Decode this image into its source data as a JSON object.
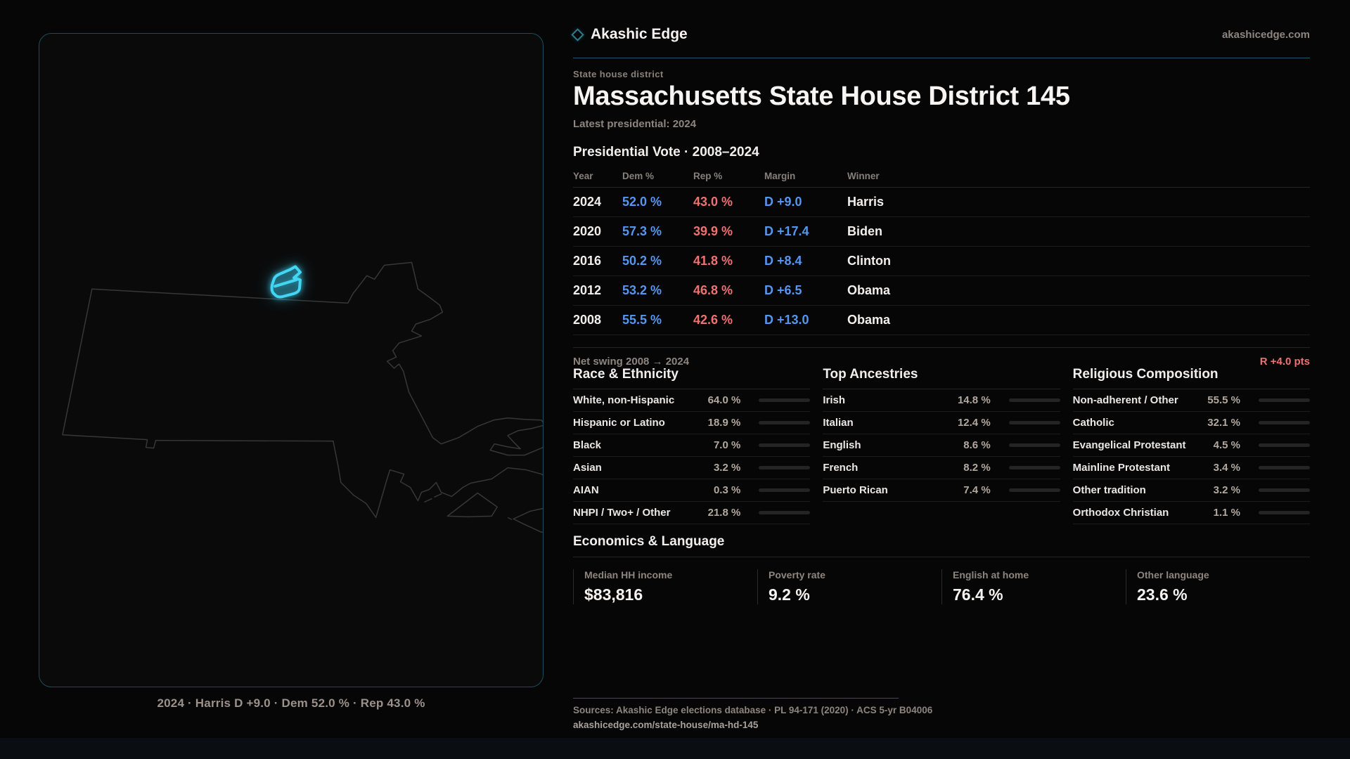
{
  "brand": {
    "name": "Akashic Edge",
    "domain": "akashicedge.com"
  },
  "page": {
    "kicker": "State house district",
    "title": "Massachusetts State House District 145",
    "latest": "Latest presidential: 2024"
  },
  "vote": {
    "heading": "Presidential Vote · 2008–2024",
    "columns": {
      "year": "Year",
      "dem": "Dem %",
      "rep": "Rep %",
      "margin": "Margin",
      "winner": "Winner"
    },
    "rows": [
      {
        "year": "2024",
        "dem": "52.0 %",
        "rep": "43.0 %",
        "margin": "D +9.0",
        "winner": "Harris"
      },
      {
        "year": "2020",
        "dem": "57.3 %",
        "rep": "39.9 %",
        "margin": "D +17.4",
        "winner": "Biden"
      },
      {
        "year": "2016",
        "dem": "50.2 %",
        "rep": "41.8 %",
        "margin": "D +8.4",
        "winner": "Clinton"
      },
      {
        "year": "2012",
        "dem": "53.2 %",
        "rep": "46.8 %",
        "margin": "D +6.5",
        "winner": "Obama"
      },
      {
        "year": "2008",
        "dem": "55.5 %",
        "rep": "42.6 %",
        "margin": "D +13.0",
        "winner": "Obama"
      }
    ]
  },
  "net_swing": {
    "label": "Net swing 2008 → 2024",
    "value": "R +4.0 pts"
  },
  "race": {
    "title": "Race & Ethnicity",
    "rows": [
      {
        "label": "White, non-Hispanic",
        "value": "64.0 %",
        "pct": 64.0
      },
      {
        "label": "Hispanic or Latino",
        "value": "18.9 %",
        "pct": 18.9
      },
      {
        "label": "Black",
        "value": "7.0 %",
        "pct": 7.0
      },
      {
        "label": "Asian",
        "value": "3.2 %",
        "pct": 3.2
      },
      {
        "label": "AIAN",
        "value": "0.3 %",
        "pct": 0.3
      },
      {
        "label": "NHPI / Two+ / Other",
        "value": "21.8 %",
        "pct": 21.8
      }
    ]
  },
  "ancestries": {
    "title": "Top Ancestries",
    "rows": [
      {
        "label": "Irish",
        "value": "14.8 %",
        "pct": 14.8
      },
      {
        "label": "Italian",
        "value": "12.4 %",
        "pct": 12.4
      },
      {
        "label": "English",
        "value": "8.6 %",
        "pct": 8.6
      },
      {
        "label": "French",
        "value": "8.2 %",
        "pct": 8.2
      },
      {
        "label": "Puerto Rican",
        "value": "7.4 %",
        "pct": 7.4
      }
    ]
  },
  "religion": {
    "title": "Religious Composition",
    "rows": [
      {
        "label": "Non-adherent / Other",
        "value": "55.5 %",
        "pct": 55.5
      },
      {
        "label": "Catholic",
        "value": "32.1 %",
        "pct": 32.1
      },
      {
        "label": "Evangelical Protestant",
        "value": "4.5 %",
        "pct": 4.5
      },
      {
        "label": "Mainline Protestant",
        "value": "3.4 %",
        "pct": 3.4
      },
      {
        "label": "Other tradition",
        "value": "3.2 %",
        "pct": 3.2
      },
      {
        "label": "Orthodox Christian",
        "value": "1.1 %",
        "pct": 1.1
      }
    ]
  },
  "economics": {
    "title": "Economics & Language",
    "stats": [
      {
        "label": "Median HH income",
        "value": "$83,816"
      },
      {
        "label": "Poverty rate",
        "value": "9.2 %"
      },
      {
        "label": "English at home",
        "value": "76.4 %"
      },
      {
        "label": "Other language",
        "value": "23.6 %"
      }
    ]
  },
  "footer": {
    "sources": "Sources: Akashic Edge elections database · PL 94-171 (2020) · ACS 5-yr B04006",
    "link": "akashicedge.com/state-house/ma-hd-145"
  },
  "map": {
    "caption": "2024 · Harris D +9.0 · Dem 52.0 % · Rep 43.0 %"
  },
  "colors": {
    "dem_blue": "#5596f0",
    "rep_red": "#ef7171",
    "accent_teal": "#1c5a64",
    "district_cyan": "#41d6f3",
    "bar_fill": "#c9c6c3",
    "value_tan": "#b2a89e"
  }
}
